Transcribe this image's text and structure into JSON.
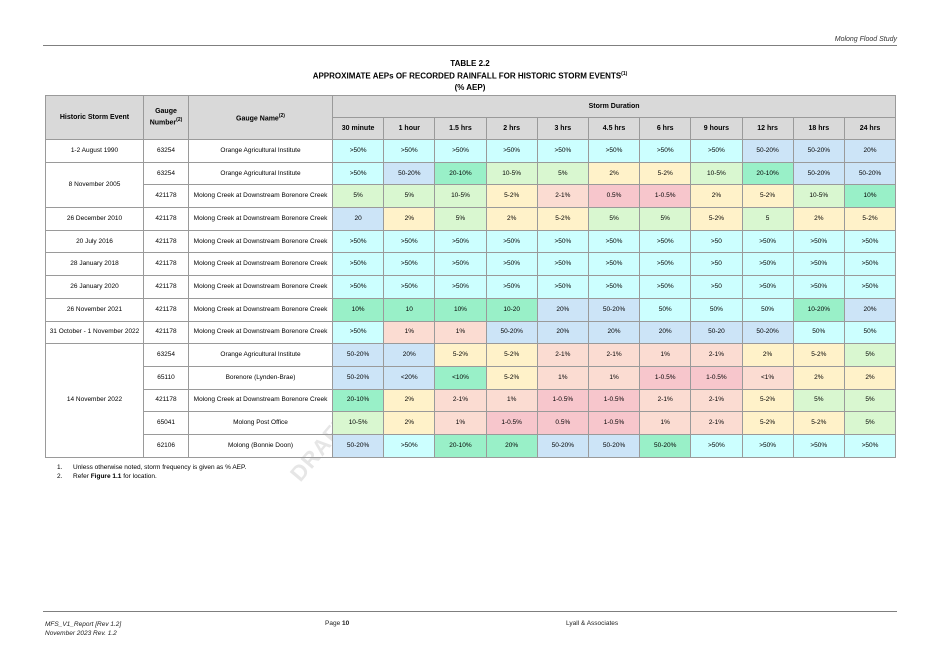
{
  "header": {
    "study": "Molong Flood Study"
  },
  "title": {
    "line1": "TABLE 2.2",
    "line2": "APPROXIMATE AEPs OF RECORDED RAINFALL FOR HISTORIC STORM EVENTS",
    "line2_sup": "(1)",
    "line3": "(% AEP)"
  },
  "watermark": "DRAFT",
  "table": {
    "col_event": "Historic Storm Event",
    "col_gauge_number": "Gauge Number",
    "col_gauge_number_sup": "(2)",
    "col_gauge_name": "Gauge Name",
    "col_gauge_name_sup": "(2)",
    "storm_duration": "Storm Duration",
    "durations": [
      "30 minute",
      "1 hour",
      "1.5 hrs",
      "2 hrs",
      "3 hrs",
      "4.5 hrs",
      "6 hrs",
      "9 hours",
      "12 hrs",
      "18 hrs",
      "24 hrs"
    ],
    "events": [
      {
        "event": "1-2 August 1990",
        "rows": [
          {
            "gauge": "63254",
            "name": "Orange Agricultural Institute",
            "values": [
              ">50%",
              ">50%",
              ">50%",
              ">50%",
              ">50%",
              ">50%",
              ">50%",
              ">50%",
              "50-20%",
              "50-20%",
              "20%"
            ],
            "colors": [
              "cyan",
              "cyan",
              "cyan",
              "cyan",
              "cyan",
              "cyan",
              "cyan",
              "cyan",
              "blue",
              "blue",
              "blue"
            ]
          }
        ]
      },
      {
        "event": "8 November 2005",
        "rows": [
          {
            "gauge": "63254",
            "name": "Orange Agricultural Institute",
            "values": [
              ">50%",
              "50-20%",
              "20-10%",
              "10-5%",
              "5%",
              "2%",
              "5-2%",
              "10-5%",
              "20-10%",
              "50-20%",
              "50-20%"
            ],
            "colors": [
              "cyan",
              "blue",
              "green",
              "lgreen",
              "lgreen",
              "yellow",
              "yellow",
              "lgreen",
              "green",
              "blue",
              "blue"
            ]
          },
          {
            "gauge": "421178",
            "name": "Molong Creek at Downstream Borenore Creek",
            "values": [
              "5%",
              "5%",
              "10-5%",
              "5-2%",
              "2-1%",
              "0.5%",
              "1-0.5%",
              "2%",
              "5-2%",
              "10-5%",
              "10%"
            ],
            "colors": [
              "lgreen",
              "lgreen",
              "lgreen",
              "yellow",
              "peach",
              "pink",
              "pink",
              "yellow",
              "yellow",
              "lgreen",
              "green"
            ]
          }
        ]
      },
      {
        "event": "26 December 2010",
        "rows": [
          {
            "gauge": "421178",
            "name": "Molong Creek at Downstream Borenore Creek",
            "values": [
              "20",
              "2%",
              "5%",
              "2%",
              "5-2%",
              "5%",
              "5%",
              "5-2%",
              "5",
              "2%",
              "5-2%"
            ],
            "colors": [
              "blue",
              "yellow",
              "lgreen",
              "yellow",
              "yellow",
              "lgreen",
              "lgreen",
              "yellow",
              "lgreen",
              "yellow",
              "yellow"
            ]
          }
        ]
      },
      {
        "event": "20 July 2016",
        "rows": [
          {
            "gauge": "421178",
            "name": "Molong Creek at Downstream Borenore Creek",
            "values": [
              ">50%",
              ">50%",
              ">50%",
              ">50%",
              ">50%",
              ">50%",
              ">50%",
              ">50",
              ">50%",
              ">50%",
              ">50%"
            ],
            "colors": [
              "cyan",
              "cyan",
              "cyan",
              "cyan",
              "cyan",
              "cyan",
              "cyan",
              "cyan",
              "cyan",
              "cyan",
              "cyan"
            ]
          }
        ]
      },
      {
        "event": "28 January 2018",
        "rows": [
          {
            "gauge": "421178",
            "name": "Molong Creek at Downstream Borenore Creek",
            "values": [
              ">50%",
              ">50%",
              ">50%",
              ">50%",
              ">50%",
              ">50%",
              ">50%",
              ">50",
              ">50%",
              ">50%",
              ">50%"
            ],
            "colors": [
              "cyan",
              "cyan",
              "cyan",
              "cyan",
              "cyan",
              "cyan",
              "cyan",
              "cyan",
              "cyan",
              "cyan",
              "cyan"
            ]
          }
        ]
      },
      {
        "event": "26 January 2020",
        "rows": [
          {
            "gauge": "421178",
            "name": "Molong Creek at Downstream Borenore Creek",
            "values": [
              ">50%",
              ">50%",
              ">50%",
              ">50%",
              ">50%",
              ">50%",
              ">50%",
              ">50",
              ">50%",
              ">50%",
              ">50%"
            ],
            "colors": [
              "cyan",
              "cyan",
              "cyan",
              "cyan",
              "cyan",
              "cyan",
              "cyan",
              "cyan",
              "cyan",
              "cyan",
              "cyan"
            ]
          }
        ]
      },
      {
        "event": "26 November 2021",
        "rows": [
          {
            "gauge": "421178",
            "name": "Molong Creek at Downstream Borenore Creek",
            "values": [
              "10%",
              "10",
              "10%",
              "10-20",
              "20%",
              "50-20%",
              "50%",
              "50%",
              "50%",
              "10-20%",
              "20%"
            ],
            "colors": [
              "green",
              "green",
              "green",
              "green",
              "blue",
              "blue",
              "cyan",
              "cyan",
              "cyan",
              "green",
              "blue"
            ]
          }
        ]
      },
      {
        "event": "31 October - 1 November 2022",
        "rows": [
          {
            "gauge": "421178",
            "name": "Molong Creek at Downstream Borenore Creek",
            "values": [
              ">50%",
              "1%",
              "1%",
              "50-20%",
              "20%",
              "20%",
              "20%",
              "50-20",
              "50-20%",
              "50%",
              "50%"
            ],
            "colors": [
              "cyan",
              "peach",
              "peach",
              "blue",
              "blue",
              "blue",
              "blue",
              "blue",
              "blue",
              "cyan",
              "cyan"
            ]
          }
        ]
      },
      {
        "event": "14 November 2022",
        "rows": [
          {
            "gauge": "63254",
            "name": "Orange Agricultural Institute",
            "values": [
              "50-20%",
              "20%",
              "5-2%",
              "5-2%",
              "2-1%",
              "2-1%",
              "1%",
              "2-1%",
              "2%",
              "5-2%",
              "5%"
            ],
            "colors": [
              "blue",
              "blue",
              "yellow",
              "yellow",
              "peach",
              "peach",
              "peach",
              "peach",
              "yellow",
              "yellow",
              "lgreen"
            ]
          },
          {
            "gauge": "65110",
            "name": "Borenore (Lynden-Brae)",
            "values": [
              "50-20%",
              "<20%",
              "<10%",
              "5-2%",
              "1%",
              "1%",
              "1-0.5%",
              "1-0.5%",
              "<1%",
              "2%",
              "2%"
            ],
            "colors": [
              "blue",
              "blue",
              "green",
              "yellow",
              "peach",
              "peach",
              "pink",
              "pink",
              "peach",
              "yellow",
              "yellow"
            ]
          },
          {
            "gauge": "421178",
            "name": "Molong Creek at Downstream Borenore Creek",
            "values": [
              "20-10%",
              "2%",
              "2-1%",
              "1%",
              "1-0.5%",
              "1-0.5%",
              "2-1%",
              "2-1%",
              "5-2%",
              "5%",
              "5%"
            ],
            "colors": [
              "green",
              "yellow",
              "peach",
              "peach",
              "pink",
              "pink",
              "peach",
              "peach",
              "yellow",
              "lgreen",
              "lgreen"
            ]
          },
          {
            "gauge": "65041",
            "name": "Molong Post Office",
            "values": [
              "10-5%",
              "2%",
              "1%",
              "1-0.5%",
              "0.5%",
              "1-0.5%",
              "1%",
              "2-1%",
              "5-2%",
              "5-2%",
              "5%"
            ],
            "colors": [
              "lgreen",
              "yellow",
              "peach",
              "pink",
              "pink",
              "pink",
              "peach",
              "peach",
              "yellow",
              "yellow",
              "lgreen"
            ]
          },
          {
            "gauge": "62106",
            "name": "Molong (Bonnie Doon)",
            "values": [
              "50-20%",
              ">50%",
              "20-10%",
              "20%",
              "50-20%",
              "50-20%",
              "50-20%",
              ">50%",
              ">50%",
              ">50%",
              ">50%"
            ],
            "colors": [
              "blue",
              "cyan",
              "green",
              "green",
              "blue",
              "blue",
              "green",
              "cyan",
              "cyan",
              "cyan",
              "cyan"
            ]
          }
        ]
      }
    ]
  },
  "notes": [
    {
      "num": "1.",
      "text": "Unless otherwise noted, storm frequency is given as % AEP."
    },
    {
      "num": "2.",
      "text_pre": "Refer ",
      "text_bold": "Figure 1.1",
      "text_post": " for location."
    }
  ],
  "footer": {
    "report": "MFS_V1_Report [Rev 1.2]",
    "date": "November 2023   Rev. 1.2",
    "page_label": "Page",
    "page_number": "10",
    "company": "Lyall & Associates"
  }
}
